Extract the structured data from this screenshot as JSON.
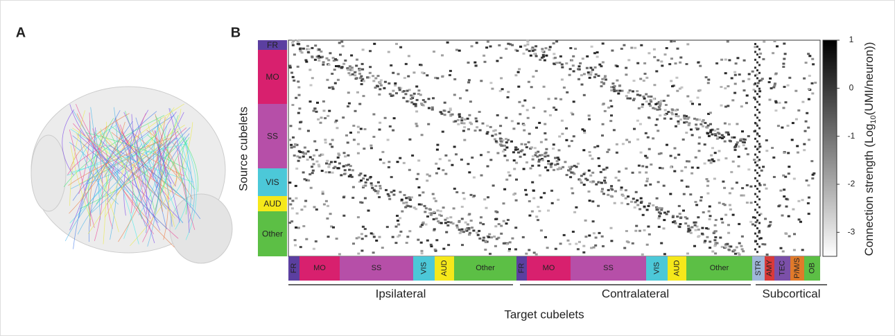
{
  "panel_a": {
    "label": "A"
  },
  "panel_b": {
    "label": "B",
    "y_axis_label": "Source cubelets",
    "x_axis_label": "Target cubelets",
    "source_groups": [
      {
        "label": "FR",
        "color": "#5b3fa0"
      },
      {
        "label": "MO",
        "color": "#d8206e"
      },
      {
        "label": "SS",
        "color": "#b64fa8"
      },
      {
        "label": "VIS",
        "color": "#4cc8d8"
      },
      {
        "label": "AUD",
        "color": "#f5e81a"
      },
      {
        "label": "Other",
        "color": "#5cbf45"
      }
    ],
    "target_groups": [
      {
        "label": "FR",
        "color": "#5b3fa0"
      },
      {
        "label": "MO",
        "color": "#d8206e"
      },
      {
        "label": "SS",
        "color": "#b64fa8"
      },
      {
        "label": "VIS",
        "color": "#4cc8d8"
      },
      {
        "label": "AUD",
        "color": "#f5e81a"
      },
      {
        "label": "Other",
        "color": "#5cbf45"
      },
      {
        "label": "FR",
        "color": "#5b3fa0"
      },
      {
        "label": "MO",
        "color": "#d8206e"
      },
      {
        "label": "SS",
        "color": "#b64fa8"
      },
      {
        "label": "VIS",
        "color": "#4cc8d8"
      },
      {
        "label": "AUD",
        "color": "#f5e81a"
      },
      {
        "label": "Other",
        "color": "#5cbf45"
      },
      {
        "label": "STR",
        "color": "#9fb7d9"
      },
      {
        "label": "AMY",
        "color": "#d83a3a"
      },
      {
        "label": "TEC",
        "color": "#7b4fa8"
      },
      {
        "label": "P/M/S",
        "color": "#e07a2a"
      },
      {
        "label": "OB",
        "color": "#5cbf45"
      }
    ],
    "sections": [
      "Ipsilateral",
      "Contralateral",
      "Subcortical"
    ],
    "colorbar": {
      "label_prefix": "Connection strength (Log",
      "label_sub": "10",
      "label_suffix": "(UMI/neuron))",
      "lim": [
        -3.5,
        1
      ],
      "ticks": [
        1,
        0,
        -1,
        -2,
        -3
      ]
    }
  }
}
